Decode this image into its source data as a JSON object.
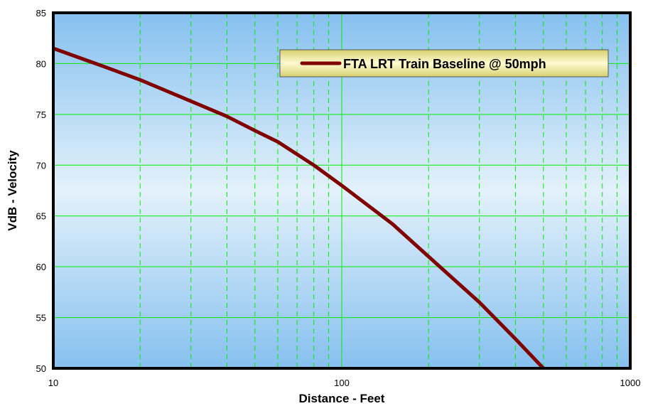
{
  "chart_data": {
    "type": "line",
    "xlabel": "Distance - Feet",
    "ylabel": "VdB - Velocity",
    "xscale": "log",
    "xlim": [
      10,
      1000
    ],
    "ylim": [
      50,
      85
    ],
    "x_ticks": [
      "10",
      "100",
      "1000"
    ],
    "y_ticks": [
      "50",
      "55",
      "60",
      "65",
      "70",
      "75",
      "80",
      "85"
    ],
    "grid": {
      "major": "solid",
      "minor": "dashed",
      "color": "#00ee00"
    },
    "legend": {
      "placement": "top-right",
      "entries": [
        "FTA LRT Train Baseline @ 50mph"
      ]
    },
    "series": [
      {
        "name": "FTA LRT Train Baseline @ 50mph",
        "color": "#800000",
        "x": [
          10,
          15,
          20,
          30,
          40,
          50,
          60,
          80,
          100,
          150,
          200,
          300,
          400,
          500
        ],
        "y": [
          81.5,
          79.7,
          78.4,
          76.3,
          74.8,
          73.4,
          72.3,
          70.0,
          68.0,
          64.2,
          61.0,
          56.5,
          52.9,
          50.0
        ]
      }
    ],
    "colors": {
      "plot_top": "#e3f1fb",
      "plot_bottom": "#86c0ef",
      "border": "#000000",
      "legend_fill_light": "#fffbd0",
      "legend_fill_dark": "#d6cf70"
    }
  }
}
